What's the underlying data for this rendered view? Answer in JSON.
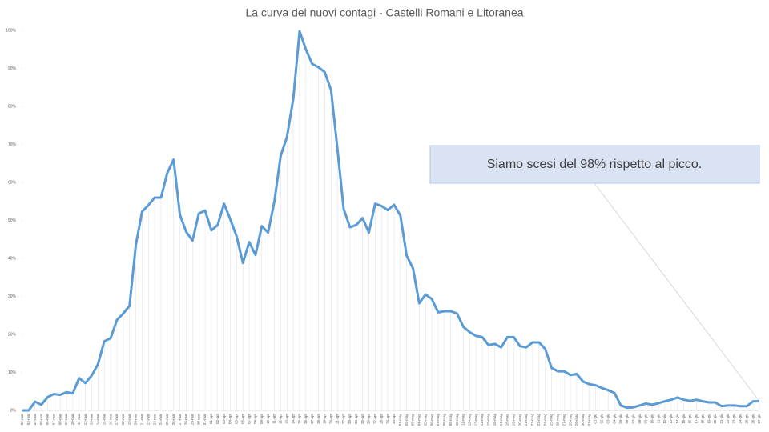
{
  "chart_data": {
    "type": "line",
    "title": "La curva dei nuovi contagi - Castelli Romani e Litoranea",
    "annotation": "Siamo scesi del 98% rispetto al picco.",
    "categories": [
      "02-mar",
      "03-mar",
      "04-mar",
      "05-mar",
      "06-mar",
      "07-mar",
      "08-mar",
      "09-mar",
      "10-mar",
      "11-mar",
      "12-mar",
      "13-mar",
      "14-mar",
      "15-mar",
      "16-mar",
      "17-mar",
      "18-mar",
      "19-mar",
      "20-mar",
      "21-mar",
      "22-mar",
      "23-mar",
      "24-mar",
      "25-mar",
      "26-mar",
      "27-mar",
      "28-mar",
      "29-mar",
      "30-mar",
      "31-mar",
      "01-apr",
      "02-apr",
      "03-apr",
      "04-apr",
      "05-apr",
      "06-apr",
      "07-apr",
      "08-apr",
      "09-apr",
      "10-apr",
      "11-apr",
      "12-apr",
      "13-apr",
      "14-apr",
      "15-apr",
      "16-apr",
      "17-apr",
      "18-apr",
      "19-apr",
      "20-apr",
      "21-apr",
      "22-apr",
      "23-apr",
      "24-apr",
      "25-apr",
      "26-apr",
      "27-apr",
      "28-apr",
      "29-apr",
      "30-apr",
      "01-mag",
      "02-mag",
      "03-mag",
      "04-mag",
      "05-mag",
      "06-mag",
      "07-mag",
      "08-mag",
      "09-mag",
      "10-mag",
      "11-mag",
      "12-mag",
      "13-mag",
      "14-mag",
      "15-mag",
      "16-mag",
      "17-mag",
      "18-mag",
      "19-mag",
      "20-mag",
      "21-mag",
      "22-mag",
      "23-mag",
      "24-mag",
      "25-mag",
      "26-mag",
      "27-mag",
      "28-mag",
      "29-mag",
      "30-mag",
      "31-mag",
      "01-giu",
      "02-giu",
      "03-giu",
      "04-giu",
      "05-giu",
      "06-giu",
      "07-giu",
      "08-giu",
      "09-giu",
      "10-giu",
      "11-giu",
      "12-giu",
      "13-giu",
      "14-giu",
      "15-giu",
      "16-giu",
      "17-giu",
      "18-giu",
      "19-giu",
      "20-giu",
      "21-giu",
      "22-giu",
      "23-giu",
      "24-giu",
      "25-giu",
      "26-giu",
      "27-giu"
    ],
    "series": [
      {
        "color": "#5b9bd5",
        "values": [
          0,
          0,
          2.3,
          1.5,
          3.5,
          4.3,
          4.1,
          4.8,
          4.5,
          8.5,
          7.2,
          9.2,
          12.2,
          18.2,
          19,
          23.8,
          25.5,
          27.5,
          43.5,
          52.3,
          54,
          56,
          56,
          62.5,
          66,
          51.5,
          47,
          44.7,
          51.8,
          52.6,
          47.4,
          48.8,
          54.4,
          50.3,
          45.8,
          38.8,
          44.3,
          40.9,
          48.5,
          46.8,
          55,
          67,
          72,
          82,
          99.8,
          95,
          91.2,
          90.3,
          89,
          84.3,
          69,
          53,
          48.2,
          48.8,
          50.6,
          46.8,
          54.4,
          53.8,
          52.7,
          54.1,
          51.3,
          40.7,
          37.4,
          28.2,
          30.5,
          29.3,
          25.8,
          26.1,
          26.1,
          25.5,
          22,
          20.6,
          19.6,
          19.3,
          17.2,
          17.5,
          16.6,
          19.3,
          19.3,
          16.9,
          16.6,
          17.9,
          17.9,
          16.2,
          11.2,
          10.3,
          10.3,
          9.3,
          9.6,
          7.6,
          6.9,
          6.6,
          5.9,
          5.3,
          4.6,
          1.3,
          0.7,
          0.8,
          1.3,
          1.8,
          1.5,
          1.9,
          2.4,
          2.8,
          3.4,
          2.8,
          2.5,
          2.8,
          2.4,
          2.1,
          2.1,
          1.1,
          1.3,
          1.3,
          1.1,
          1.1,
          2.4,
          2.4
        ]
      }
    ],
    "ylim": [
      0,
      100
    ],
    "yticks": [
      {
        "value": 0,
        "label": "0%"
      },
      {
        "value": 10,
        "label": "10%"
      },
      {
        "value": 20,
        "label": "20%"
      },
      {
        "value": 30,
        "label": "30%"
      },
      {
        "value": 40,
        "label": "40%"
      },
      {
        "value": 50,
        "label": "50%"
      },
      {
        "value": 60,
        "label": "60%"
      },
      {
        "value": 70,
        "label": "70%"
      },
      {
        "value": 80,
        "label": "80%"
      },
      {
        "value": 90,
        "label": "90%"
      },
      {
        "value": 100,
        "label": "100%"
      }
    ]
  }
}
